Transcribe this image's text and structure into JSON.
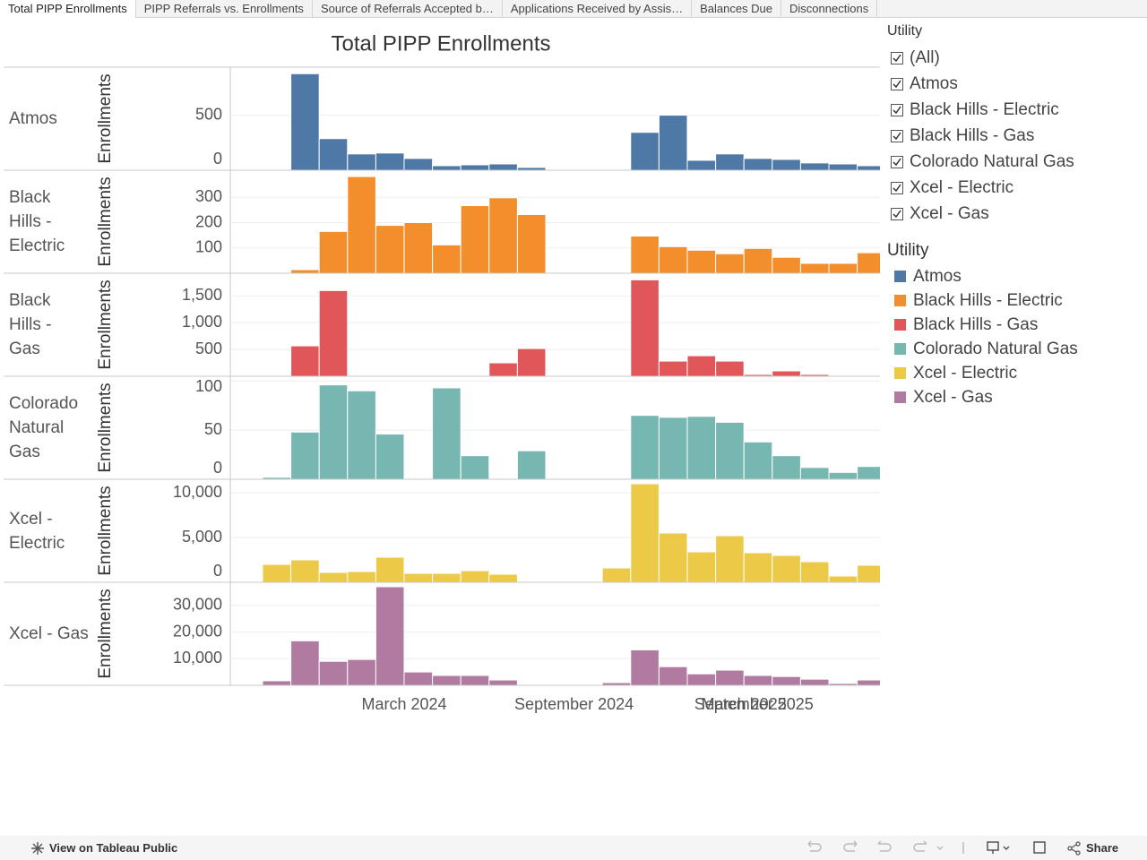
{
  "tabs": [
    "Total PIPP Enrollments",
    "PIPP Referrals vs. Enrollments",
    "Source of Referrals Accepted b…",
    "Applications Received by Assis…",
    "Balances Due",
    "Disconnections"
  ],
  "title": "Total PIPP Enrollments",
  "chart_data": [
    {
      "type": "bar",
      "title": "Atmos",
      "y_label": "Enrollments",
      "color": "#4e79a7",
      "x": [
        "2023-10",
        "2023-11",
        "2023-12",
        "2024-01",
        "2024-02",
        "2024-03",
        "2024-04",
        "2024-05",
        "2024-06",
        "2024-07",
        "2024-08",
        "2024-09",
        "2024-10",
        "2024-11",
        "2024-12",
        "2025-01",
        "2025-02",
        "2025-03",
        "2025-04",
        "2025-05",
        "2025-06",
        "2025-07"
      ],
      "values": [
        null,
        877,
        287,
        148,
        156,
        107,
        41,
        49,
        57,
        25,
        null,
        null,
        null,
        344,
        500,
        90,
        148,
        107,
        98,
        66,
        57,
        41
      ],
      "xlim": [
        "2023-09",
        "2025-08"
      ],
      "ylim": [
        0,
        920
      ],
      "yticks": [
        0,
        500
      ],
      "grid": true
    },
    {
      "type": "bar",
      "title": "Black Hills - Electric",
      "y_label": "Enrollments",
      "color": "#f28e2b",
      "x": [
        "2023-10",
        "2023-11",
        "2023-12",
        "2024-01",
        "2024-02",
        "2024-03",
        "2024-04",
        "2024-05",
        "2024-06",
        "2024-07",
        "2024-08",
        "2024-09",
        "2024-10",
        "2024-11",
        "2024-12",
        "2025-01",
        "2025-02",
        "2025-03",
        "2025-04",
        "2025-05",
        "2025-06",
        "2025-07"
      ],
      "values": [
        null,
        14,
        165,
        382,
        189,
        200,
        112,
        267,
        298,
        232,
        null,
        null,
        null,
        147,
        105,
        91,
        77,
        98,
        63,
        39,
        39,
        81
      ],
      "xlim": [
        "2023-09",
        "2025-08"
      ],
      "ylim": [
        0,
        400
      ],
      "yticks": [
        100,
        200,
        300
      ],
      "grid": true
    },
    {
      "type": "bar",
      "title": "Black Hills - Gas",
      "y_label": "Enrollments",
      "color": "#e15759",
      "x": [
        "2023-10",
        "2023-11",
        "2023-12",
        "2024-01",
        "2024-02",
        "2024-03",
        "2024-04",
        "2024-05",
        "2024-06",
        "2024-07",
        "2024-08",
        "2024-09",
        "2024-10",
        "2024-11",
        "2024-12",
        "2025-01",
        "2025-02",
        "2025-03",
        "2025-04",
        "2025-05",
        "2025-06",
        "2025-07"
      ],
      "values": [
        null,
        567,
        1600,
        null,
        null,
        null,
        null,
        17,
        250,
        517,
        null,
        null,
        null,
        1800,
        283,
        383,
        283,
        33,
        100,
        33,
        8,
        17
      ],
      "xlim": [
        "2023-09",
        "2025-08"
      ],
      "ylim": [
        0,
        1890
      ],
      "yticks": [
        500,
        {
          "value": 1000,
          "label": "1,000"
        },
        {
          "value": 1500,
          "label": "1,500"
        }
      ],
      "grid": true
    },
    {
      "type": "bar",
      "title": "Colorado Natural Gas",
      "y_label": "Enrollments",
      "color": "#76b7b2",
      "x": [
        "2023-10",
        "2023-11",
        "2023-12",
        "2024-01",
        "2024-02",
        "2024-03",
        "2024-04",
        "2024-05",
        "2024-06",
        "2024-07",
        "2024-08",
        "2024-09",
        "2024-10",
        "2024-11",
        "2024-12",
        "2025-01",
        "2025-02",
        "2025-03",
        "2025-04",
        "2025-05",
        "2025-06",
        "2025-07"
      ],
      "values": [
        2,
        48,
        96,
        90,
        46,
        null,
        93,
        24,
        null,
        29,
        null,
        null,
        null,
        65,
        63,
        64,
        58,
        38,
        24,
        12,
        7,
        13
      ],
      "xlim": [
        "2023-09",
        "2025-08"
      ],
      "ylim": [
        0,
        103
      ],
      "yticks": [
        0,
        50,
        100
      ],
      "grid": true
    },
    {
      "type": "bar",
      "title": "Xcel - Electric",
      "y_label": "Enrollments",
      "color": "#edc948",
      "x": [
        "2023-10",
        "2023-11",
        "2023-12",
        "2024-01",
        "2024-02",
        "2024-03",
        "2024-04",
        "2024-05",
        "2024-06",
        "2024-07",
        "2024-08",
        "2024-09",
        "2024-10",
        "2024-11",
        "2024-12",
        "2025-01",
        "2025-02",
        "2025-03",
        "2025-04",
        "2025-05",
        "2025-06",
        "2025-07"
      ],
      "values": [
        2000,
        2500,
        1100,
        1200,
        2800,
        1000,
        1000,
        1300,
        900,
        null,
        null,
        null,
        1600,
        11000,
        5500,
        3400,
        5200,
        3300,
        3000,
        2300,
        700,
        1900
      ],
      "xlim": [
        "2023-09",
        "2025-08"
      ],
      "ylim": [
        0,
        11300
      ],
      "yticks": [
        0,
        {
          "value": 5000,
          "label": "5,000"
        },
        {
          "value": 10000,
          "label": "10,000"
        }
      ],
      "grid": true
    },
    {
      "type": "bar",
      "title": "Xcel - Gas",
      "y_label": "Enrollments",
      "color": "#b07aa1",
      "x": [
        "2023-10",
        "2023-11",
        "2023-12",
        "2024-01",
        "2024-02",
        "2024-03",
        "2024-04",
        "2024-05",
        "2024-06",
        "2024-07",
        "2024-08",
        "2024-09",
        "2024-10",
        "2024-11",
        "2024-12",
        "2025-01",
        "2025-02",
        "2025-03",
        "2025-04",
        "2025-05",
        "2025-06",
        "2025-07"
      ],
      "values": [
        1700,
        16700,
        9000,
        9700,
        37000,
        5000,
        3700,
        3700,
        2000,
        null,
        null,
        null,
        1000,
        13300,
        7000,
        4300,
        5700,
        3700,
        3300,
        2300,
        700,
        2000
      ],
      "xlim": [
        "2023-09",
        "2025-08"
      ],
      "ylim": [
        0,
        38000
      ],
      "yticks": [
        {
          "value": 10000,
          "label": "10,000"
        },
        {
          "value": 20000,
          "label": "20,000"
        },
        {
          "value": 30000,
          "label": "30,000"
        }
      ],
      "grid": true,
      "xticks": [
        {
          "value": "2024-03",
          "label": "March 2024"
        },
        {
          "value": "2024-09",
          "label": "September 2024"
        },
        {
          "value": "2025-03",
          "label": "March 2025"
        },
        {
          "value": "2025-09",
          "label": "September 2025"
        }
      ]
    }
  ],
  "filter": {
    "title": "Utility",
    "options": [
      "(All)",
      "Atmos",
      "Black Hills - Electric",
      "Black Hills - Gas",
      "Colorado Natural Gas",
      "Xcel - Electric",
      "Xcel - Gas"
    ]
  },
  "legend": {
    "title": "Utility"
  },
  "toolbar": {
    "link": "View on Tableau Public",
    "share": "Share"
  }
}
